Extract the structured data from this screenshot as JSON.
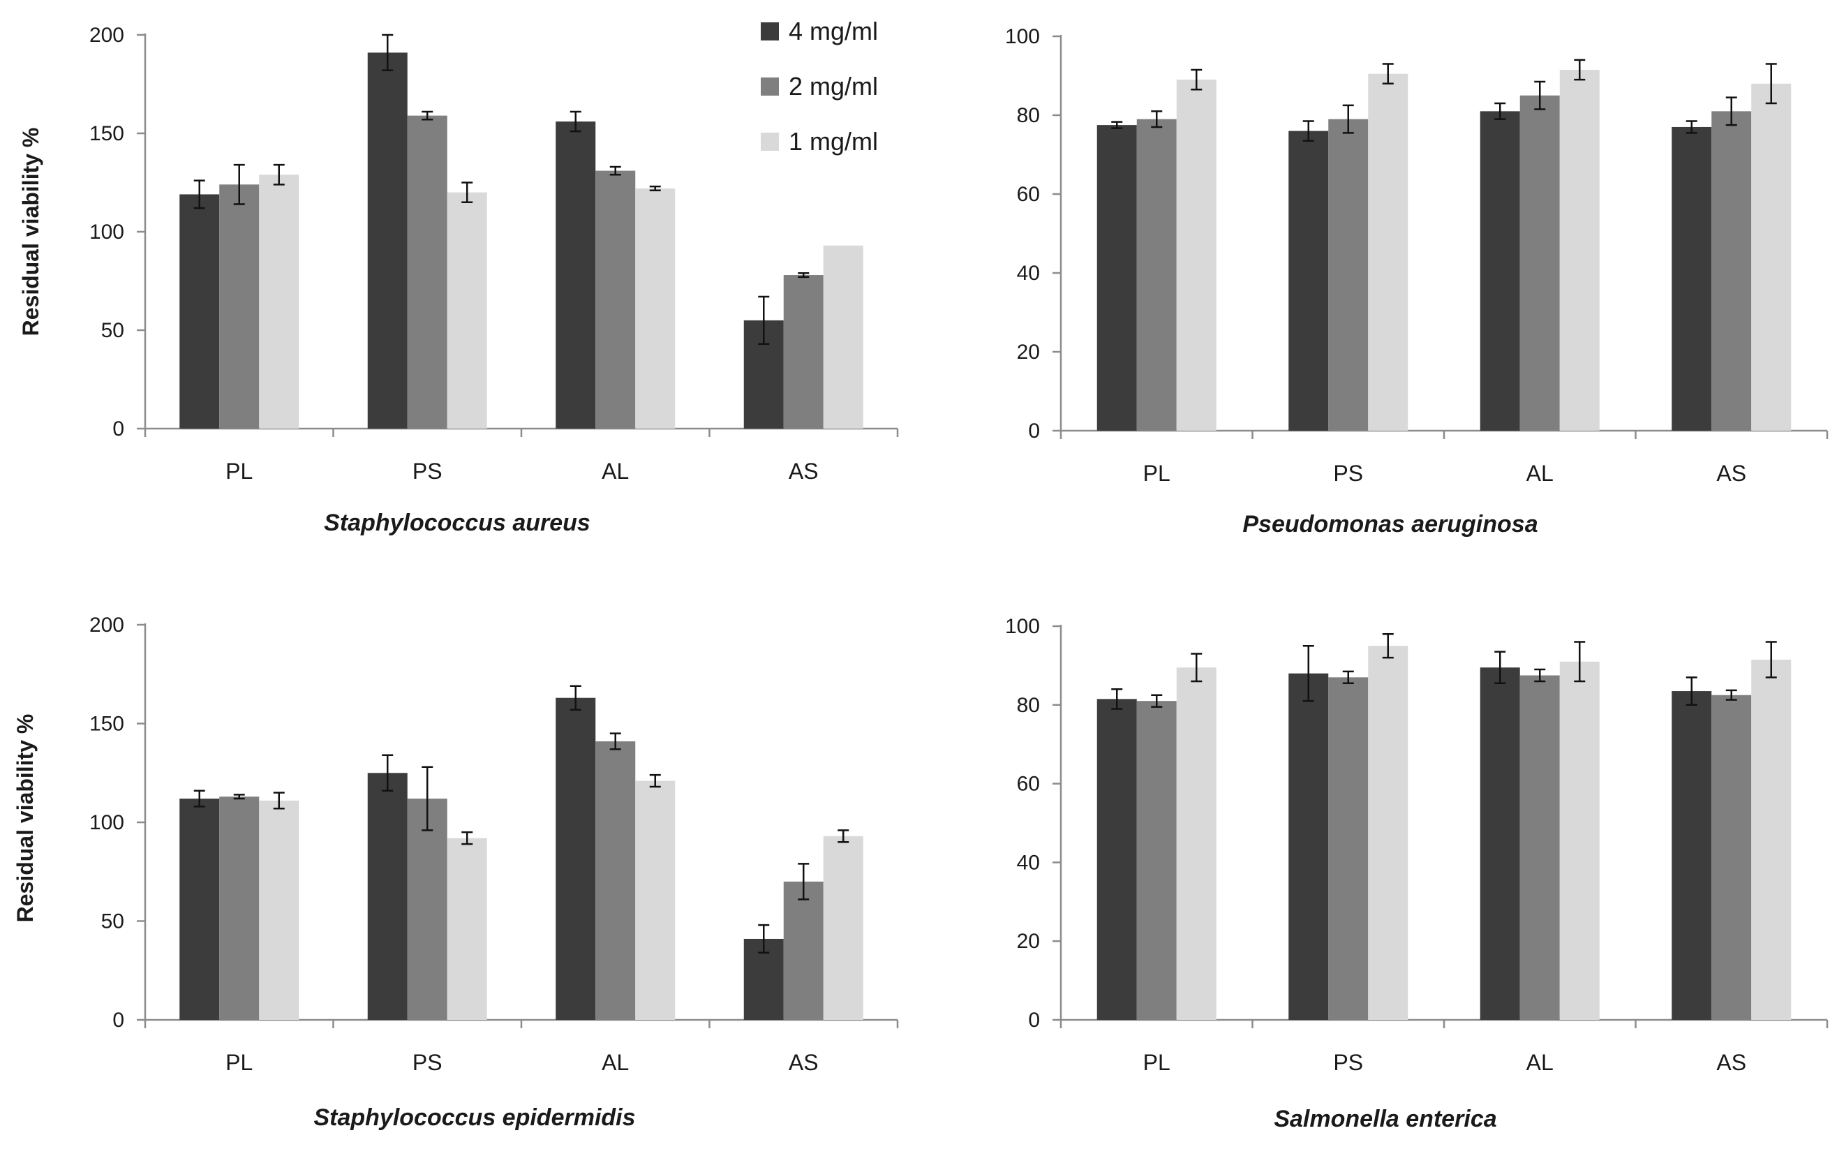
{
  "chart_data": [
    {
      "type": "bar",
      "title": "",
      "xlabel": "Staphylococcus aureus",
      "ylabel": "Residual viability %",
      "ylim": [
        0,
        200
      ],
      "yticks": [
        0,
        50,
        100,
        150,
        200
      ],
      "categories": [
        "PL",
        "PS",
        "AL",
        "AS"
      ],
      "legend": "top-right",
      "series": [
        {
          "name": "4 mg/ml",
          "color": "#3c3c3c",
          "values": [
            119,
            191,
            156,
            55
          ],
          "errors": [
            7,
            9,
            5,
            12
          ]
        },
        {
          "name": "2 mg/ml",
          "color": "#7f7f7f",
          "values": [
            124,
            159,
            131,
            78
          ],
          "errors": [
            10,
            2,
            2,
            1
          ]
        },
        {
          "name": "1 mg/ml",
          "color": "#d9d9d9",
          "values": [
            129,
            120,
            122,
            93
          ],
          "errors": [
            5,
            5,
            1,
            0
          ]
        }
      ]
    },
    {
      "type": "bar",
      "title": "",
      "xlabel": "Pseudomonas aeruginosa",
      "ylabel": "",
      "ylim": [
        0,
        100
      ],
      "yticks": [
        0,
        20,
        40,
        60,
        80,
        100
      ],
      "categories": [
        "PL",
        "PS",
        "AL",
        "AS"
      ],
      "series": [
        {
          "name": "4 mg/ml",
          "color": "#3c3c3c",
          "values": [
            77.5,
            76,
            81,
            77
          ],
          "errors": [
            0.8,
            2.5,
            2,
            1.5
          ]
        },
        {
          "name": "2 mg/ml",
          "color": "#7f7f7f",
          "values": [
            79,
            79,
            85,
            81
          ],
          "errors": [
            2,
            3.5,
            3.5,
            3.5
          ]
        },
        {
          "name": "1 mg/ml",
          "color": "#d9d9d9",
          "values": [
            89,
            90.5,
            91.5,
            88
          ],
          "errors": [
            2.5,
            2.5,
            2.5,
            5
          ]
        }
      ]
    },
    {
      "type": "bar",
      "title": "",
      "xlabel": "Staphylococcus epidermidis",
      "ylabel": "Residual viability %",
      "ylim": [
        0,
        200
      ],
      "yticks": [
        0,
        50,
        100,
        150,
        200
      ],
      "categories": [
        "PL",
        "PS",
        "AL",
        "AS"
      ],
      "series": [
        {
          "name": "4 mg/ml",
          "color": "#3c3c3c",
          "values": [
            112,
            125,
            163,
            41
          ],
          "errors": [
            4,
            9,
            6,
            7
          ]
        },
        {
          "name": "2 mg/ml",
          "color": "#7f7f7f",
          "values": [
            113,
            112,
            141,
            70
          ],
          "errors": [
            1,
            16,
            4,
            9
          ]
        },
        {
          "name": "1 mg/ml",
          "color": "#d9d9d9",
          "values": [
            111,
            92,
            121,
            93
          ],
          "errors": [
            4,
            3,
            3,
            3
          ]
        }
      ]
    },
    {
      "type": "bar",
      "title": "",
      "xlabel": "Salmonella enterica",
      "ylabel": "",
      "ylim": [
        0,
        100
      ],
      "yticks": [
        0,
        20,
        40,
        60,
        80,
        100
      ],
      "categories": [
        "PL",
        "PS",
        "AL",
        "AS"
      ],
      "series": [
        {
          "name": "4 mg/ml",
          "color": "#3c3c3c",
          "values": [
            81.5,
            88,
            89.5,
            83.5
          ],
          "errors": [
            2.5,
            7,
            4,
            3.5
          ]
        },
        {
          "name": "2 mg/ml",
          "color": "#7f7f7f",
          "values": [
            81,
            87,
            87.5,
            82.5
          ],
          "errors": [
            1.5,
            1.5,
            1.5,
            1.2
          ]
        },
        {
          "name": "1 mg/ml",
          "color": "#d9d9d9",
          "values": [
            89.5,
            95,
            91,
            91.5
          ],
          "errors": [
            3.5,
            3,
            5,
            4.5
          ]
        }
      ]
    }
  ]
}
